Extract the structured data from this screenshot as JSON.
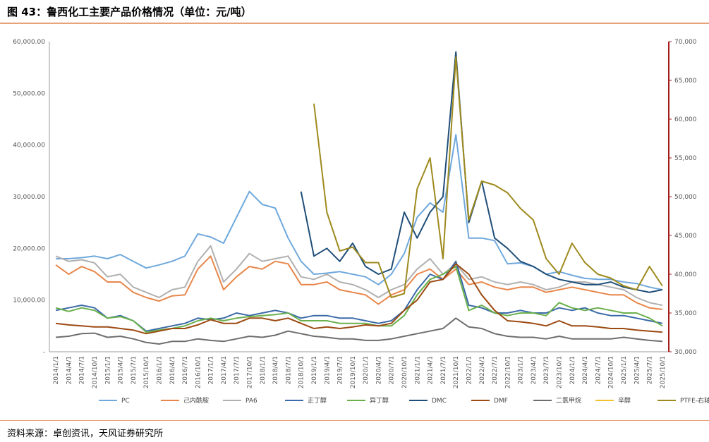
{
  "header": {
    "title": "图 43：鲁西化工主要产品价格情况（单位：元/吨）"
  },
  "footer": {
    "source": "资料来源：卓创资讯，天风证券研究所"
  },
  "chart_data": {
    "type": "line",
    "y_left": {
      "ticks": [
        "-",
        "10,000.00",
        "20,000.00",
        "30,000.00",
        "40,000.00",
        "50,000.00",
        "60,000.00"
      ],
      "range": [
        0,
        60000
      ]
    },
    "y_right": {
      "ticks": [
        "30,000",
        "35,000",
        "40,000",
        "45,000",
        "50,000",
        "55,000",
        "60,000",
        "65,000",
        "70,000"
      ],
      "range": [
        30000,
        70000
      ]
    },
    "x_labels": [
      "2014/1/1",
      "2014/4/1",
      "2014/7/1",
      "2014/10/1",
      "2015/1/1",
      "2015/4/1",
      "2015/7/1",
      "2015/10/1",
      "2016/1/1",
      "2016/4/1",
      "2016/7/1",
      "2016/10/1",
      "2017/1/1",
      "2017/4/1",
      "2017/7/1",
      "2017/10/1",
      "2018/1/1",
      "2018/4/1",
      "2018/7/1",
      "2018/10/1",
      "2019/1/1",
      "2019/4/1",
      "2019/7/1",
      "2019/10/1",
      "2020/1/1",
      "2020/4/1",
      "2020/7/1",
      "2020/10/1",
      "2021/1/1",
      "2021/4/1",
      "2021/7/1",
      "2021/10/1",
      "2022/1/1",
      "2022/4/1",
      "2022/7/1",
      "2022/10/1",
      "2023/1/1",
      "2023/4/1",
      "2023/7/1",
      "2023/10/1",
      "2024/1/1",
      "2024/4/1",
      "2024/7/1",
      "2024/10/1",
      "2025/1/1",
      "2025/4/1",
      "2025/7/1",
      "2025/10/1"
    ],
    "series": [
      {
        "name": "PC",
        "color": "#6fa8dc",
        "axis": "left",
        "values": [
          18000,
          18000,
          18200,
          18500,
          18000,
          18800,
          17500,
          16200,
          16800,
          17500,
          18500,
          22800,
          22200,
          21000,
          26000,
          31000,
          28500,
          27800,
          22000,
          17500,
          15000,
          15200,
          15500,
          15000,
          14500,
          13000,
          15000,
          19000,
          26000,
          28800,
          27000,
          42000,
          22000,
          22000,
          21500,
          17000,
          17200,
          16500,
          15000,
          15500,
          14800,
          14200,
          14000,
          14000,
          13500,
          13200,
          12500,
          12000
        ]
      },
      {
        "name": "己内酰胺",
        "color": "#e8864a",
        "axis": "left",
        "values": [
          16800,
          15000,
          16500,
          15500,
          13500,
          13500,
          11500,
          10500,
          9800,
          10800,
          11000,
          16000,
          18500,
          12000,
          14500,
          16500,
          16000,
          17500,
          17000,
          13000,
          13000,
          13500,
          12000,
          11500,
          11000,
          9200,
          11000,
          12000,
          15000,
          16000,
          14000,
          16000,
          13000,
          13500,
          12500,
          12000,
          12500,
          12500,
          11500,
          12000,
          12500,
          12000,
          11500,
          11000,
          11000,
          9500,
          8500,
          8200
        ]
      },
      {
        "name": "PA6",
        "color": "#b0b0b0",
        "axis": "left",
        "values": [
          18500,
          17500,
          17800,
          17200,
          14500,
          15000,
          12500,
          11500,
          10500,
          12000,
          12500,
          17500,
          20500,
          13500,
          16000,
          19000,
          17500,
          18000,
          18500,
          14500,
          14000,
          15000,
          13500,
          13000,
          12000,
          10500,
          12000,
          13000,
          16000,
          18000,
          15000,
          17000,
          14000,
          14500,
          13500,
          13000,
          13500,
          13000,
          12000,
          12500,
          13500,
          13500,
          13000,
          12500,
          12000,
          10500,
          9500,
          9000
        ]
      },
      {
        "name": "正丁醇",
        "color": "#3b6aa8",
        "axis": "left",
        "values": [
          8000,
          8500,
          9000,
          8500,
          6500,
          7000,
          6000,
          4000,
          4500,
          5000,
          5500,
          6500,
          6200,
          6500,
          7500,
          7000,
          7500,
          8000,
          7500,
          6500,
          7000,
          7000,
          6500,
          6500,
          6000,
          5500,
          6000,
          8000,
          12000,
          15000,
          14000,
          17500,
          9000,
          8500,
          7500,
          7500,
          8000,
          7500,
          7500,
          8500,
          8000,
          8500,
          7500,
          7000,
          7000,
          6500,
          6000,
          5500
        ]
      },
      {
        "name": "异丁醇",
        "color": "#6ab04c",
        "axis": "left",
        "values": [
          8500,
          7800,
          8500,
          8000,
          6500,
          6800,
          6000,
          3800,
          4200,
          4500,
          5000,
          6000,
          6500,
          6000,
          6500,
          6800,
          7000,
          7200,
          7500,
          6000,
          6000,
          6000,
          5500,
          5500,
          5500,
          5000,
          5000,
          7000,
          11000,
          14000,
          15000,
          16500,
          8000,
          9000,
          7500,
          7000,
          7500,
          7500,
          7000,
          9500,
          8500,
          8000,
          8500,
          8000,
          7500,
          7500,
          6500,
          5000
        ]
      },
      {
        "name": "DMC",
        "color": "#1f4e79",
        "axis": "left",
        "values": [
          null,
          null,
          null,
          null,
          null,
          null,
          null,
          null,
          null,
          null,
          null,
          null,
          null,
          null,
          null,
          null,
          null,
          null,
          null,
          31000,
          18500,
          20000,
          17500,
          21000,
          16500,
          15000,
          16000,
          27000,
          22000,
          27000,
          30000,
          58000,
          25000,
          33000,
          22000,
          20000,
          17500,
          16500,
          15000,
          14000,
          13500,
          13000,
          13000,
          13500,
          12500,
          12000,
          11500,
          12000
        ]
      },
      {
        "name": "DMF",
        "color": "#9c4a12",
        "axis": "left",
        "values": [
          5500,
          5200,
          5000,
          4800,
          4800,
          4500,
          4200,
          3500,
          4000,
          4500,
          4500,
          5200,
          6200,
          5500,
          5500,
          6500,
          6500,
          6000,
          6500,
          5500,
          4500,
          4800,
          4500,
          4800,
          5200,
          5000,
          5500,
          8000,
          10000,
          13500,
          14000,
          17000,
          15000,
          11000,
          8000,
          6000,
          5800,
          5500,
          5000,
          6000,
          5000,
          5000,
          4800,
          4500,
          4500,
          4200,
          4000,
          3800
        ]
      },
      {
        "name": "二氯甲烷",
        "color": "#6e6e6e",
        "axis": "left",
        "values": [
          2800,
          3000,
          3500,
          3600,
          2800,
          3000,
          2500,
          1800,
          1500,
          2000,
          2000,
          2500,
          2200,
          2000,
          2500,
          3000,
          2800,
          3200,
          4000,
          3500,
          3000,
          2800,
          2500,
          2500,
          2200,
          2200,
          2500,
          3000,
          3500,
          4000,
          4500,
          6500,
          4800,
          4500,
          3500,
          3000,
          2800,
          2800,
          2500,
          3000,
          2500,
          2500,
          2500,
          2500,
          2800,
          2500,
          2200,
          2000
        ]
      },
      {
        "name": "辛醇",
        "color": "#f2c22e",
        "axis": "left",
        "values": []
      },
      {
        "name": "PTFE-右轴",
        "color": "#9e8a1e",
        "axis": "right",
        "values": [
          null,
          null,
          null,
          null,
          null,
          null,
          null,
          null,
          null,
          null,
          null,
          null,
          null,
          null,
          null,
          null,
          null,
          null,
          null,
          null,
          62000,
          48000,
          43000,
          43500,
          41500,
          41500,
          37000,
          37500,
          51000,
          55000,
          42000,
          68000,
          47000,
          52000,
          51500,
          50500,
          48500,
          47000,
          42000,
          40000,
          44000,
          41500,
          40000,
          39500,
          38500,
          38000,
          41000,
          38500
        ]
      }
    ]
  }
}
